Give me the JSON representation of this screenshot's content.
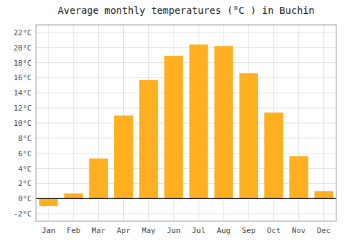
{
  "chart_data": {
    "type": "bar",
    "title": "Average monthly temperatures (°C ) in Buchin",
    "categories": [
      "Jan",
      "Feb",
      "Mar",
      "Apr",
      "May",
      "Jun",
      "Jul",
      "Aug",
      "Sep",
      "Oct",
      "Nov",
      "Dec"
    ],
    "values": [
      -1.0,
      0.7,
      5.3,
      11.0,
      15.7,
      18.9,
      20.4,
      20.2,
      16.6,
      11.4,
      5.6,
      1.0
    ],
    "color": "#FFB020",
    "ylim": [
      -3,
      23
    ],
    "yticks": [
      {
        "value": -2,
        "label": "-2°C"
      },
      {
        "value": 0,
        "label": "0°C"
      },
      {
        "value": 2,
        "label": "2°C"
      },
      {
        "value": 4,
        "label": "4°C"
      },
      {
        "value": 6,
        "label": "6°C"
      },
      {
        "value": 8,
        "label": "8°C"
      },
      {
        "value": 10,
        "label": "10°C"
      },
      {
        "value": 12,
        "label": "12°C"
      },
      {
        "value": 14,
        "label": "14°C"
      },
      {
        "value": 16,
        "label": "16°C"
      },
      {
        "value": 18,
        "label": "18°C"
      },
      {
        "value": 20,
        "label": "20°C"
      },
      {
        "value": 22,
        "label": "22°C"
      }
    ],
    "grid": true
  }
}
